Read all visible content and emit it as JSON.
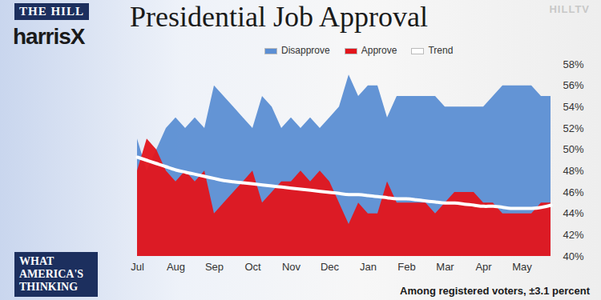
{
  "chart_data": {
    "type": "area",
    "title": "Presidential Job Approval",
    "caption": "Among registered voters, ±3.1 percent",
    "annotations": [
      "THE HILL",
      "harrisX",
      "HILLTV",
      "WHAT AMERICA'S THINKING"
    ],
    "x": [
      "Jul",
      null,
      null,
      null,
      "Aug",
      null,
      null,
      null,
      "Sep",
      null,
      null,
      null,
      "Oct",
      null,
      null,
      null,
      "Nov",
      null,
      null,
      null,
      "Dec",
      null,
      null,
      null,
      "Jan",
      null,
      null,
      null,
      "Feb",
      null,
      null,
      null,
      "Mar",
      null,
      null,
      null,
      "Apr",
      null,
      null,
      null,
      "May",
      null,
      null,
      null
    ],
    "series": [
      {
        "name": "Disapprove",
        "type": "area",
        "color": "#5b8ed3",
        "values": [
          51,
          48,
          50,
          52,
          53,
          52,
          53,
          52,
          56,
          55,
          54,
          53,
          52,
          55,
          54,
          52,
          53,
          52,
          53,
          52,
          53,
          54,
          57,
          55,
          56,
          56,
          53,
          55,
          55,
          55,
          55,
          55,
          54,
          54,
          54,
          54,
          54,
          55,
          56,
          56,
          56,
          56,
          55,
          55
        ]
      },
      {
        "name": "Approve",
        "type": "area",
        "color": "#e3141b",
        "values": [
          48,
          51,
          50,
          48,
          47,
          48,
          47,
          48,
          44,
          45,
          46,
          47,
          48,
          45,
          46,
          47,
          47,
          48,
          47,
          48,
          47,
          45,
          43,
          45,
          44,
          44,
          47,
          45,
          45,
          45,
          45,
          44,
          45,
          46,
          46,
          46,
          45,
          45,
          44,
          44,
          44,
          44,
          45,
          45
        ]
      },
      {
        "name": "Trend",
        "type": "line",
        "color": "#ffffff",
        "values": [
          49.3,
          49.0,
          48.7,
          48.4,
          48.1,
          47.9,
          47.7,
          47.5,
          47.3,
          47.1,
          47.0,
          46.9,
          46.8,
          46.7,
          46.6,
          46.5,
          46.4,
          46.3,
          46.2,
          46.1,
          46.0,
          45.9,
          45.8,
          45.8,
          45.7,
          45.6,
          45.5,
          45.4,
          45.4,
          45.3,
          45.2,
          45.1,
          45.0,
          45.0,
          44.9,
          44.8,
          44.7,
          44.7,
          44.6,
          44.5,
          44.5,
          44.5,
          44.6,
          44.8
        ]
      }
    ],
    "ylim": [
      40,
      58
    ],
    "yticks": [
      {
        "value": 40,
        "label": "40%"
      },
      {
        "value": 42,
        "label": "42%"
      },
      {
        "value": 44,
        "label": "44%"
      },
      {
        "value": 46,
        "label": "46%"
      },
      {
        "value": 48,
        "label": "48%"
      },
      {
        "value": 50,
        "label": "50%"
      },
      {
        "value": 52,
        "label": "52%"
      },
      {
        "value": 54,
        "label": "54%"
      },
      {
        "value": 56,
        "label": "56%"
      },
      {
        "value": 58,
        "label": "58%"
      }
    ],
    "grid": false,
    "legend": "top"
  }
}
